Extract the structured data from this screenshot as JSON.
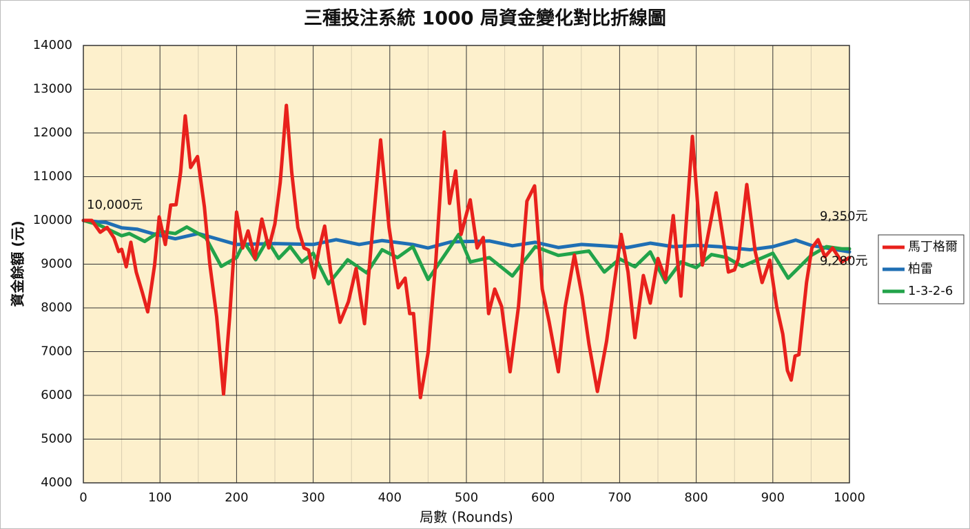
{
  "chart_data": {
    "type": "line",
    "title": "三種投注系統 1000 局資金變化對比折線圖",
    "x_label": "局數 (Rounds)",
    "y_label": "資金餘額 (元)",
    "xlim": [
      0,
      1000
    ],
    "ylim": [
      4000,
      14000
    ],
    "xticks": [
      0,
      100,
      200,
      300,
      400,
      500,
      600,
      700,
      800,
      900,
      1000
    ],
    "x_minor_grid": [
      50,
      150,
      250,
      350,
      450,
      550,
      650,
      750,
      850,
      950
    ],
    "yticks": [
      4000,
      5000,
      6000,
      7000,
      8000,
      9000,
      10000,
      11000,
      12000,
      13000,
      14000
    ],
    "grid": true,
    "legend": "right",
    "series": [
      {
        "name": "馬丁格爾",
        "color": "#e8211c",
        "x": [
          0,
          11,
          22,
          31,
          40,
          46,
          50,
          56,
          62,
          69,
          77,
          84,
          93,
          99,
          107,
          114,
          121,
          127,
          133,
          140,
          149,
          158,
          165,
          174,
          183,
          191,
          200,
          208,
          215,
          224,
          233,
          242,
          250,
          257,
          265,
          272,
          280,
          288,
          294,
          301,
          308,
          315,
          323,
          335,
          346,
          356,
          367,
          377,
          388,
          399,
          411,
          420,
          426,
          431,
          440,
          450,
          460,
          471,
          478,
          486,
          493,
          505,
          514,
          522,
          529,
          537,
          546,
          557,
          568,
          579,
          589,
          599,
          608,
          620,
          629,
          641,
          651,
          660,
          671,
          683,
          692,
          702,
          711,
          720,
          731,
          740,
          750,
          760,
          770,
          780,
          795,
          808,
          826,
          842,
          850,
          855,
          866,
          877,
          886,
          896,
          905,
          913,
          919,
          924,
          929,
          934,
          944,
          951,
          959,
          968,
          978,
          990,
          1000
        ],
        "values": [
          10000,
          10000,
          9730,
          9840,
          9600,
          9290,
          9340,
          8940,
          9500,
          8820,
          8350,
          7910,
          8980,
          10080,
          9450,
          10350,
          10360,
          11100,
          12390,
          11210,
          11460,
          10310,
          9010,
          7800,
          6030,
          7800,
          10190,
          9370,
          9760,
          9130,
          10030,
          9370,
          9920,
          10870,
          12630,
          11100,
          9840,
          9370,
          9320,
          8690,
          9370,
          9870,
          8820,
          7670,
          8140,
          8900,
          7640,
          9680,
          11840,
          9840,
          8460,
          8680,
          7870,
          7870,
          5950,
          6980,
          9050,
          12020,
          10390,
          11130,
          9680,
          10470,
          9370,
          9610,
          7870,
          8430,
          8030,
          6540,
          8030,
          10440,
          10790,
          8430,
          7680,
          6540,
          8030,
          9210,
          8270,
          7170,
          6090,
          7240,
          8430,
          9680,
          8820,
          7320,
          8740,
          8110,
          9130,
          8660,
          10110,
          8270,
          11920,
          8980,
          10630,
          8820,
          8870,
          9130,
          10820,
          9290,
          8580,
          9090,
          8030,
          7400,
          6570,
          6350,
          6900,
          6930,
          8580,
          9370,
          9560,
          9170,
          9370,
          9050,
          9150
        ]
      },
      {
        "name": "柏雷",
        "color": "#1f6fb4",
        "x": [
          0,
          30,
          50,
          70,
          90,
          120,
          150,
          170,
          200,
          250,
          300,
          330,
          360,
          390,
          430,
          450,
          480,
          530,
          560,
          590,
          620,
          650,
          680,
          710,
          740,
          770,
          800,
          830,
          870,
          900,
          930,
          950,
          970,
          1000
        ],
        "values": [
          10000,
          9950,
          9830,
          9800,
          9700,
          9580,
          9700,
          9600,
          9450,
          9470,
          9450,
          9560,
          9450,
          9540,
          9450,
          9370,
          9510,
          9530,
          9420,
          9500,
          9380,
          9450,
          9420,
          9380,
          9480,
          9400,
          9430,
          9400,
          9330,
          9400,
          9550,
          9430,
          9370,
          9280
        ]
      },
      {
        "name": "1-3-2-6",
        "color": "#22a34a",
        "x": [
          0,
          20,
          50,
          60,
          80,
          100,
          120,
          135,
          160,
          180,
          200,
          210,
          225,
          240,
          255,
          270,
          285,
          300,
          320,
          345,
          370,
          390,
          410,
          430,
          450,
          490,
          505,
          530,
          560,
          590,
          620,
          640,
          660,
          680,
          700,
          720,
          740,
          760,
          780,
          800,
          820,
          840,
          860,
          880,
          900,
          920,
          950,
          970,
          990,
          1000
        ],
        "values": [
          10000,
          9900,
          9650,
          9700,
          9520,
          9750,
          9700,
          9850,
          9600,
          8950,
          9150,
          9500,
          9100,
          9550,
          9130,
          9400,
          9050,
          9250,
          8550,
          9100,
          8800,
          9330,
          9150,
          9400,
          8650,
          9680,
          9050,
          9150,
          8730,
          9400,
          9200,
          9250,
          9300,
          8820,
          9120,
          8940,
          9280,
          8580,
          9050,
          8920,
          9220,
          9150,
          8950,
          9100,
          9250,
          8680,
          9200,
          9400,
          9350,
          9350
        ]
      }
    ],
    "annotations": [
      {
        "text": "10,000元",
        "x": 0,
        "y": 10000
      },
      {
        "text": "9,350元",
        "x": 1000,
        "y": 9350
      },
      {
        "text": "9,280元",
        "x": 1000,
        "y": 9280
      }
    ]
  }
}
